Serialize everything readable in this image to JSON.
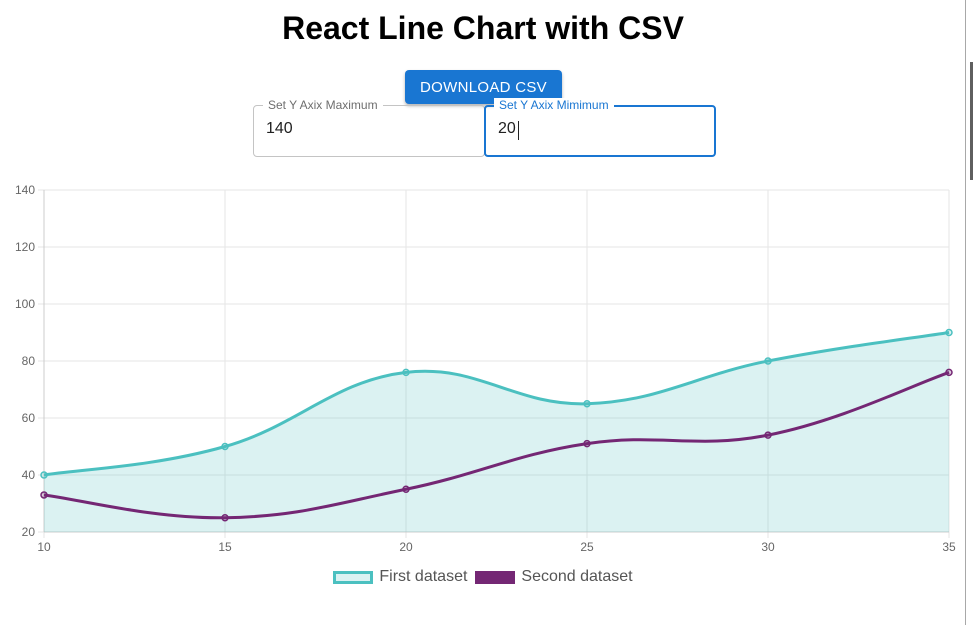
{
  "page": {
    "title": "React Line Chart with CSV",
    "download_label": "DOWNLOAD CSV"
  },
  "controls": {
    "ymax_label": "Set Y Axix Maximum",
    "ymax_value": "140",
    "ymin_label": "Set Y Axix Mimimum",
    "ymin_value": "20"
  },
  "chart_data": {
    "type": "line",
    "x": [
      10,
      15,
      20,
      25,
      30,
      35
    ],
    "xticks": [
      10,
      15,
      20,
      25,
      30,
      35
    ],
    "yticks": [
      20,
      40,
      60,
      80,
      100,
      120,
      140
    ],
    "xlim": [
      10,
      35
    ],
    "ylim": [
      20,
      140
    ],
    "grid": true,
    "legend_position": "bottom",
    "title": "",
    "xlabel": "",
    "ylabel": "",
    "series": [
      {
        "name": "First dataset",
        "values": [
          40,
          50,
          76,
          65,
          80,
          90
        ],
        "color": "#4bc0c0",
        "fill": "rgba(75,192,192,0.2)",
        "filled": true
      },
      {
        "name": "Second dataset",
        "values": [
          33,
          25,
          35,
          51,
          54,
          76
        ],
        "color": "#742774",
        "filled": false
      }
    ]
  }
}
